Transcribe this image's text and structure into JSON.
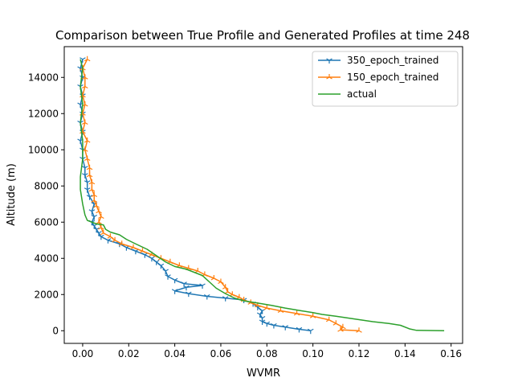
{
  "chart_data": {
    "type": "line",
    "title": "Comparison between True Profile and Generated Profiles at time 248",
    "xlabel": "WVMR",
    "ylabel": "Altitude (m)",
    "xlim": [
      -0.008,
      0.165
    ],
    "ylim": [
      -700,
      15700
    ],
    "xticks": [
      0.0,
      0.02,
      0.04,
      0.06,
      0.08,
      0.1,
      0.12,
      0.14,
      0.16
    ],
    "xtick_labels": [
      "0.00",
      "0.02",
      "0.04",
      "0.06",
      "0.08",
      "0.10",
      "0.12",
      "0.14",
      "0.16"
    ],
    "yticks": [
      0,
      2000,
      4000,
      6000,
      8000,
      10000,
      12000,
      14000
    ],
    "ytick_labels": [
      "0",
      "2000",
      "4000",
      "6000",
      "8000",
      "10000",
      "12000",
      "14000"
    ],
    "grid": false,
    "legend_position": "top-right",
    "series": [
      {
        "name": "350_epoch_trained",
        "color": "#1f77b4",
        "marker": "tri_down",
        "points": [
          [
            0.099,
            0
          ],
          [
            0.094,
            80
          ],
          [
            0.088,
            200
          ],
          [
            0.083,
            300
          ],
          [
            0.08,
            400
          ],
          [
            0.078,
            500
          ],
          [
            0.078,
            700
          ],
          [
            0.077,
            900
          ],
          [
            0.078,
            1100
          ],
          [
            0.076,
            1300
          ],
          [
            0.074,
            1500
          ],
          [
            0.07,
            1700
          ],
          [
            0.062,
            1800
          ],
          [
            0.054,
            1900
          ],
          [
            0.046,
            2050
          ],
          [
            0.04,
            2200
          ],
          [
            0.045,
            2400
          ],
          [
            0.052,
            2500
          ],
          [
            0.044,
            2600
          ],
          [
            0.04,
            2800
          ],
          [
            0.037,
            3000
          ],
          [
            0.036,
            3300
          ],
          [
            0.034,
            3600
          ],
          [
            0.032,
            3800
          ],
          [
            0.03,
            4000
          ],
          [
            0.027,
            4200
          ],
          [
            0.023,
            4400
          ],
          [
            0.019,
            4600
          ],
          [
            0.016,
            4800
          ],
          [
            0.011,
            5000
          ],
          [
            0.008,
            5200
          ],
          [
            0.007,
            5400
          ],
          [
            0.006,
            5600
          ],
          [
            0.005,
            5800
          ],
          [
            0.004,
            6000
          ],
          [
            0.005,
            6300
          ],
          [
            0.004,
            6600
          ],
          [
            0.005,
            7000
          ],
          [
            0.003,
            7400
          ],
          [
            0.002,
            7800
          ],
          [
            0.002,
            8200
          ],
          [
            0.001,
            8600
          ],
          [
            0.001,
            9000
          ],
          [
            0.0,
            9500
          ],
          [
            0.0,
            10000
          ],
          [
            -0.001,
            10500
          ],
          [
            0.0,
            11000
          ],
          [
            -0.001,
            11500
          ],
          [
            0.0,
            12000
          ],
          [
            -0.001,
            12500
          ],
          [
            0.0,
            13000
          ],
          [
            -0.001,
            13500
          ],
          [
            0.0,
            14000
          ],
          [
            -0.001,
            14500
          ],
          [
            0.0,
            15000
          ]
        ]
      },
      {
        "name": "150_epoch_trained",
        "color": "#ff7f0e",
        "marker": "tri_up",
        "points": [
          [
            0.12,
            0
          ],
          [
            0.112,
            50
          ],
          [
            0.113,
            200
          ],
          [
            0.11,
            400
          ],
          [
            0.107,
            600
          ],
          [
            0.1,
            800
          ],
          [
            0.093,
            950
          ],
          [
            0.086,
            1100
          ],
          [
            0.08,
            1250
          ],
          [
            0.076,
            1400
          ],
          [
            0.073,
            1550
          ],
          [
            0.07,
            1700
          ],
          [
            0.068,
            1850
          ],
          [
            0.065,
            2000
          ],
          [
            0.063,
            2150
          ],
          [
            0.062,
            2400
          ],
          [
            0.06,
            2700
          ],
          [
            0.057,
            2900
          ],
          [
            0.053,
            3100
          ],
          [
            0.05,
            3300
          ],
          [
            0.046,
            3450
          ],
          [
            0.042,
            3600
          ],
          [
            0.038,
            3800
          ],
          [
            0.034,
            4000
          ],
          [
            0.03,
            4200
          ],
          [
            0.026,
            4400
          ],
          [
            0.022,
            4600
          ],
          [
            0.017,
            4800
          ],
          [
            0.014,
            5000
          ],
          [
            0.012,
            5200
          ],
          [
            0.009,
            5400
          ],
          [
            0.008,
            5700
          ],
          [
            0.007,
            6000
          ],
          [
            0.008,
            6300
          ],
          [
            0.007,
            6600
          ],
          [
            0.006,
            6900
          ],
          [
            0.005,
            7200
          ],
          [
            0.005,
            7500
          ],
          [
            0.004,
            7800
          ],
          [
            0.004,
            8200
          ],
          [
            0.003,
            8600
          ],
          [
            0.003,
            9000
          ],
          [
            0.002,
            9500
          ],
          [
            0.001,
            10000
          ],
          [
            0.002,
            10500
          ],
          [
            0.0,
            11000
          ],
          [
            0.001,
            11500
          ],
          [
            0.0,
            12000
          ],
          [
            0.001,
            12500
          ],
          [
            0.0,
            13000
          ],
          [
            0.001,
            13500
          ],
          [
            0.001,
            14000
          ],
          [
            0.0,
            14500
          ],
          [
            0.002,
            15000
          ]
        ]
      },
      {
        "name": "actual",
        "color": "#2ca02c",
        "marker": "none",
        "points": [
          [
            0.157,
            0
          ],
          [
            0.145,
            20
          ],
          [
            0.142,
            100
          ],
          [
            0.138,
            300
          ],
          [
            0.133,
            400
          ],
          [
            0.126,
            500
          ],
          [
            0.118,
            650
          ],
          [
            0.11,
            800
          ],
          [
            0.104,
            900
          ],
          [
            0.1,
            1000
          ],
          [
            0.095,
            1100
          ],
          [
            0.088,
            1250
          ],
          [
            0.082,
            1400
          ],
          [
            0.075,
            1550
          ],
          [
            0.07,
            1650
          ],
          [
            0.066,
            1800
          ],
          [
            0.062,
            2050
          ],
          [
            0.058,
            2350
          ],
          [
            0.055,
            2700
          ],
          [
            0.052,
            3050
          ],
          [
            0.048,
            3250
          ],
          [
            0.045,
            3400
          ],
          [
            0.04,
            3550
          ],
          [
            0.036,
            3800
          ],
          [
            0.032,
            4150
          ],
          [
            0.028,
            4500
          ],
          [
            0.023,
            4800
          ],
          [
            0.019,
            5050
          ],
          [
            0.016,
            5300
          ],
          [
            0.012,
            5450
          ],
          [
            0.01,
            5600
          ],
          [
            0.009,
            5850
          ],
          [
            0.006,
            5900
          ],
          [
            0.004,
            6000
          ],
          [
            0.002,
            6100
          ],
          [
            0.001,
            6400
          ],
          [
            0.0,
            7000
          ],
          [
            -0.001,
            7800
          ],
          [
            -0.001,
            8500
          ],
          [
            0.0,
            9500
          ],
          [
            0.0,
            10500
          ],
          [
            -0.001,
            11500
          ],
          [
            0.0,
            12500
          ],
          [
            -0.001,
            13500
          ],
          [
            0.0,
            14500
          ],
          [
            -0.001,
            15000
          ]
        ]
      }
    ]
  }
}
